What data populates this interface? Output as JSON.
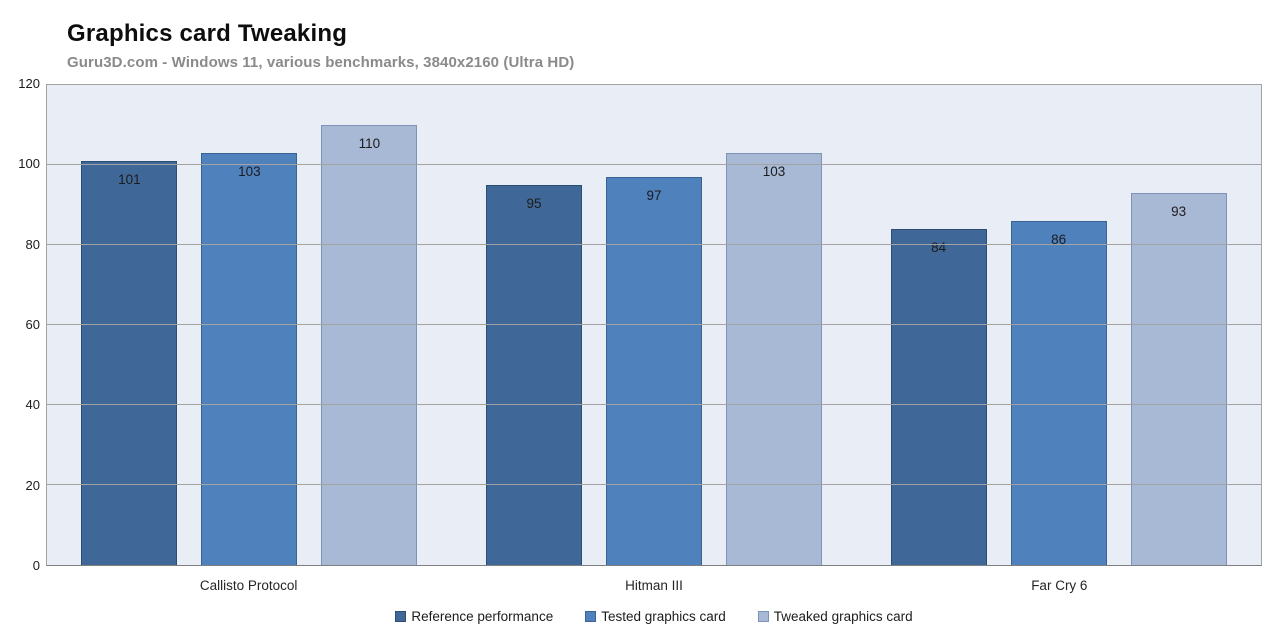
{
  "header": {
    "title": "Graphics card Tweaking",
    "subtitle": "Guru3D.com - Windows 11, various benchmarks, 3840x2160 (Ultra HD)"
  },
  "chart_data": {
    "type": "bar",
    "title": "Graphics card Tweaking",
    "subtitle": "Guru3D.com - Windows 11, various benchmarks, 3840x2160 (Ultra HD)",
    "categories": [
      "Callisto Protocol",
      "Hitman III",
      "Far Cry 6"
    ],
    "series": [
      {
        "name": "Reference performance",
        "values": [
          101,
          95,
          84
        ],
        "color": "#3f6898",
        "border_color": "#2c4d74"
      },
      {
        "name": "Tested graphics card",
        "values": [
          103,
          97,
          86
        ],
        "color": "#4f81bd",
        "border_color": "#3a6293"
      },
      {
        "name": "Tweaked graphics card",
        "values": [
          110,
          103,
          93
        ],
        "color": "#a8b9d6",
        "border_color": "#7e93b8"
      }
    ],
    "xlabel": "",
    "ylabel": "",
    "ylim": [
      0,
      120
    ],
    "yticks": [
      0,
      20,
      40,
      60,
      80,
      100,
      120
    ],
    "grid": true,
    "value_labels": true,
    "legend_position": "bottom",
    "plot_background": "#e9edf5",
    "grid_color": "#a3a3a3",
    "axis_line_color": "#7f7f7f"
  }
}
